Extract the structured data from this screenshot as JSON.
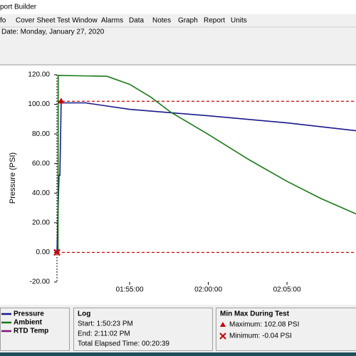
{
  "window": {
    "title": "port Builder"
  },
  "menu": [
    "fo",
    "Cover Sheet",
    "Test Window",
    "Alarms",
    "Data",
    "Notes",
    "Graph",
    "Report",
    "Units"
  ],
  "header": {
    "date": "Date: Monday, January 27, 2020"
  },
  "chart_data": {
    "type": "line",
    "ylabel": "Pressure (PSI)",
    "xlim": [
      6623,
      7763
    ],
    "xticks": [
      {
        "value": 6900,
        "label": "01:55:00"
      },
      {
        "value": 7200,
        "label": "02:00:00"
      },
      {
        "value": 7500,
        "label": "02:05:00"
      }
    ],
    "ylim": [
      -20,
      120
    ],
    "yticks": [
      {
        "value": 120,
        "label": "120.00"
      },
      {
        "value": 100,
        "label": "100.00"
      },
      {
        "value": 80,
        "label": "80.00"
      },
      {
        "value": 60,
        "label": "60.00"
      },
      {
        "value": 40,
        "label": "40.00"
      },
      {
        "value": 20,
        "label": "20.00"
      },
      {
        "value": 0,
        "label": "0.00"
      },
      {
        "value": -20,
        "label": "-20.00"
      }
    ],
    "series": [
      {
        "name": "Pressure",
        "color": "#1a1a8c",
        "x": [
          6623,
          6631,
          6634,
          6639,
          6732,
          6900,
          7199,
          7500,
          7763
        ],
        "values": [
          -0.04,
          52,
          52,
          101,
          101,
          96.6,
          92.3,
          87.5,
          82.2
        ]
      },
      {
        "name": "Ambient",
        "color": "#1a7a1a",
        "x": [
          6627,
          6628,
          6813,
          6900,
          6980,
          7057,
          7199,
          7356,
          7500,
          7628,
          7763
        ],
        "values": [
          0,
          119.5,
          119,
          113.5,
          105,
          94.7,
          79.8,
          62.5,
          48,
          36.5,
          26
        ]
      }
    ],
    "reference_lines": [
      {
        "value": 102.08,
        "color": "#cc0000"
      },
      {
        "value": -0.04,
        "color": "#cc0000"
      }
    ],
    "markers": [
      {
        "x": 6639,
        "y": 102.08,
        "shape": "triangle",
        "color": "#cc0000"
      },
      {
        "x": 6623,
        "y": -0.04,
        "shape": "x",
        "color": "#cc0000"
      }
    ]
  },
  "legend": [
    {
      "name": "Pressure",
      "color": "#1a1a8c"
    },
    {
      "name": "Ambient",
      "color": "#1a7a1a"
    },
    {
      "name": "RTD Temp",
      "color": "#7a1a7a"
    }
  ],
  "log": {
    "title": "Log",
    "start": "Start: 1:50:23 PM",
    "end": "End: 2:11:02 PM",
    "elapsed": "Total Elapsed Time: 00:20:39"
  },
  "minmax": {
    "title": "Min Max During Test",
    "maximum": "Maximum: 102.08 PSI",
    "minimum": "Minimum: -0.04 PSI"
  }
}
